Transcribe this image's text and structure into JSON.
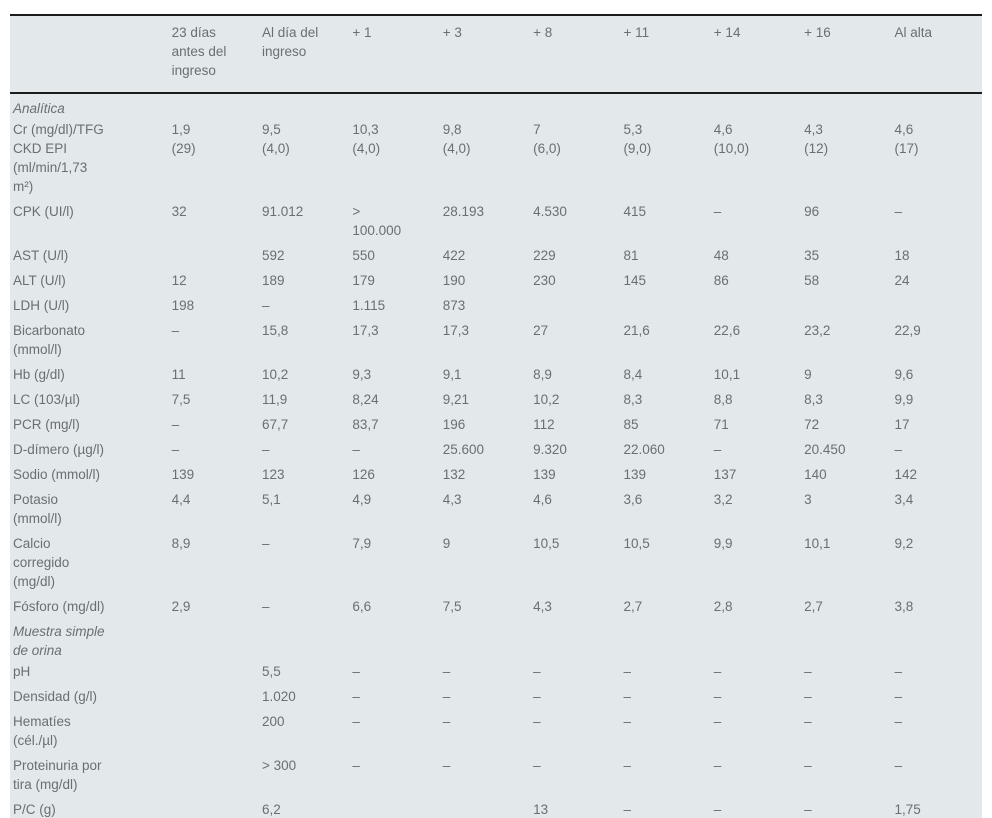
{
  "colors": {
    "table_background": "#e3e8ea",
    "text": "#6a6f71",
    "border": "#1c1c1c",
    "page_background": "#ffffff"
  },
  "table": {
    "columns": [
      "",
      "23 días\nantes del\ningreso",
      "Al día del\ningreso",
      "+ 1",
      "+ 3",
      "+ 8",
      "+ 11",
      "+ 14",
      "+ 16",
      "Al alta"
    ],
    "rows": [
      {
        "type": "section",
        "label": "Analítica"
      },
      {
        "type": "data",
        "label": "Cr (mg/dl)/TFG\nCKD EPI\n(ml/min/1,73\nm²)",
        "values": [
          "1,9\n(29)",
          "9,5\n(4,0)",
          "10,3\n(4,0)",
          "9,8\n(4,0)",
          "7\n(6,0)",
          "5,3\n(9,0)",
          "4,6\n(10,0)",
          "4,3\n(12)",
          "4,6\n(17)"
        ]
      },
      {
        "type": "data",
        "label": "CPK (UI/l)",
        "values": [
          "32",
          "91.012",
          ">\n100.000",
          "28.193",
          "4.530",
          "415",
          "–",
          "96",
          "–"
        ]
      },
      {
        "type": "data",
        "label": "AST (U/l)",
        "values": [
          "",
          "592",
          "550",
          "422",
          "229",
          "81",
          "48",
          "35",
          "18"
        ]
      },
      {
        "type": "data",
        "label": "ALT (U/l)",
        "values": [
          "12",
          "189",
          "179",
          "190",
          "230",
          "145",
          "86",
          "58",
          "24"
        ]
      },
      {
        "type": "data",
        "label": "LDH (U/l)",
        "values": [
          "198",
          "–",
          "1.115",
          "873",
          "",
          "",
          "",
          "",
          ""
        ]
      },
      {
        "type": "data",
        "label": "Bicarbonato\n(mmol/l)",
        "values": [
          "–",
          "15,8",
          "17,3",
          "17,3",
          "27",
          "21,6",
          "22,6",
          "23,2",
          "22,9"
        ]
      },
      {
        "type": "data",
        "label": "Hb (g/dl)",
        "values": [
          "11",
          "10,2",
          "9,3",
          "9,1",
          "8,9",
          "8,4",
          "10,1",
          "9",
          "9,6"
        ]
      },
      {
        "type": "data",
        "label": "LC (103/µl)",
        "values": [
          "7,5",
          "11,9",
          "8,24",
          "9,21",
          "10,2",
          "8,3",
          "8,8",
          "8,3",
          "9,9"
        ]
      },
      {
        "type": "data",
        "label": "PCR (mg/l)",
        "values": [
          "–",
          "67,7",
          "83,7",
          "196",
          "112",
          "85",
          "71",
          "72",
          "17"
        ]
      },
      {
        "type": "data",
        "label": "D-dímero (µg/l)",
        "values": [
          "–",
          "–",
          "–",
          "25.600",
          "9.320",
          "22.060",
          "–",
          "20.450",
          "–"
        ]
      },
      {
        "type": "data",
        "label": "Sodio (mmol/l)",
        "values": [
          "139",
          "123",
          "126",
          "132",
          "139",
          "139",
          "137",
          "140",
          "142"
        ]
      },
      {
        "type": "data",
        "label": "Potasio\n(mmol/l)",
        "values": [
          "4,4",
          "5,1",
          "4,9",
          "4,3",
          "4,6",
          "3,6",
          "3,2",
          "3",
          "3,4"
        ]
      },
      {
        "type": "data",
        "label": "Calcio\ncorregido\n(mg/dl)",
        "values": [
          "8,9",
          "–",
          "7,9",
          "9",
          "10,5",
          "10,5",
          "9,9",
          "10,1",
          "9,2"
        ]
      },
      {
        "type": "data",
        "label": "Fósforo (mg/dl)",
        "values": [
          "2,9",
          "–",
          "6,6",
          "7,5",
          "4,3",
          "2,7",
          "2,8",
          "2,7",
          "3,8"
        ]
      },
      {
        "type": "section",
        "label": "Muestra simple\nde orina"
      },
      {
        "type": "data",
        "label": "pH",
        "values": [
          "",
          "5,5",
          "–",
          "–",
          "–",
          "–",
          "–",
          "–",
          "–"
        ]
      },
      {
        "type": "data",
        "label": "Densidad (g/l)",
        "values": [
          "",
          "1.020",
          "–",
          "–",
          "–",
          "–",
          "–",
          "–",
          "–"
        ]
      },
      {
        "type": "data",
        "label": "Hematíes\n(cél./µl)",
        "values": [
          "",
          "200",
          "–",
          "–",
          "–",
          "–",
          "–",
          "–",
          "–"
        ]
      },
      {
        "type": "data",
        "label": "Proteinuria por\ntira (mg/dl)",
        "values": [
          "",
          "> 300",
          "–",
          "–",
          "–",
          "–",
          "–",
          "–",
          "–"
        ]
      },
      {
        "type": "data",
        "label": "P/C (g)",
        "values": [
          "",
          "6,2",
          "",
          "",
          "13",
          "–",
          "–",
          "–",
          "1,75"
        ]
      }
    ]
  }
}
